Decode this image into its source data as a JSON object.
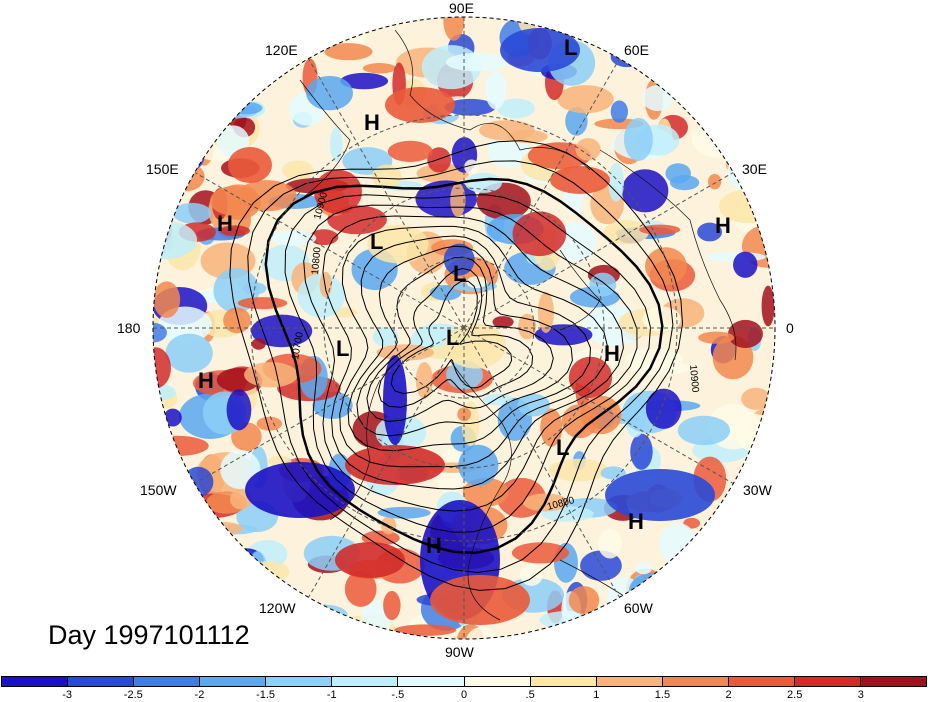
{
  "longitude_labels": [
    "90E",
    "60E",
    "30E",
    "0",
    "30W",
    "60W",
    "90W",
    "120W",
    "150W",
    "180",
    "150E",
    "120E"
  ],
  "pressure_systems": [
    {
      "kind": "L"
    },
    {
      "kind": "H"
    },
    {
      "kind": "H"
    },
    {
      "kind": "L"
    },
    {
      "kind": "H"
    },
    {
      "kind": "L"
    },
    {
      "kind": "L"
    },
    {
      "kind": "L"
    },
    {
      "kind": "H"
    },
    {
      "kind": "H"
    },
    {
      "kind": "L"
    },
    {
      "kind": "H"
    },
    {
      "kind": "H"
    }
  ],
  "contour_labels": [
    "10900",
    "10800",
    "10700",
    "10900",
    "10800"
  ],
  "day_label": "Day 1997101112",
  "colorbar": {
    "colors": [
      "#1b12c4",
      "#2a49d6",
      "#3f7ee6",
      "#5aa8f0",
      "#8ccff7",
      "#bfeffc",
      "#e4fbff",
      "#fffbe6",
      "#fce6a8",
      "#f8b47a",
      "#f2884f",
      "#ea5a3a",
      "#d22c2a",
      "#a3111c"
    ],
    "ticks": [
      "-3",
      "-2.5",
      "-2",
      "-1.5",
      "-1",
      "-.5",
      "0",
      ".5",
      "1",
      "1.5",
      "2",
      "2.5",
      "3"
    ]
  }
}
